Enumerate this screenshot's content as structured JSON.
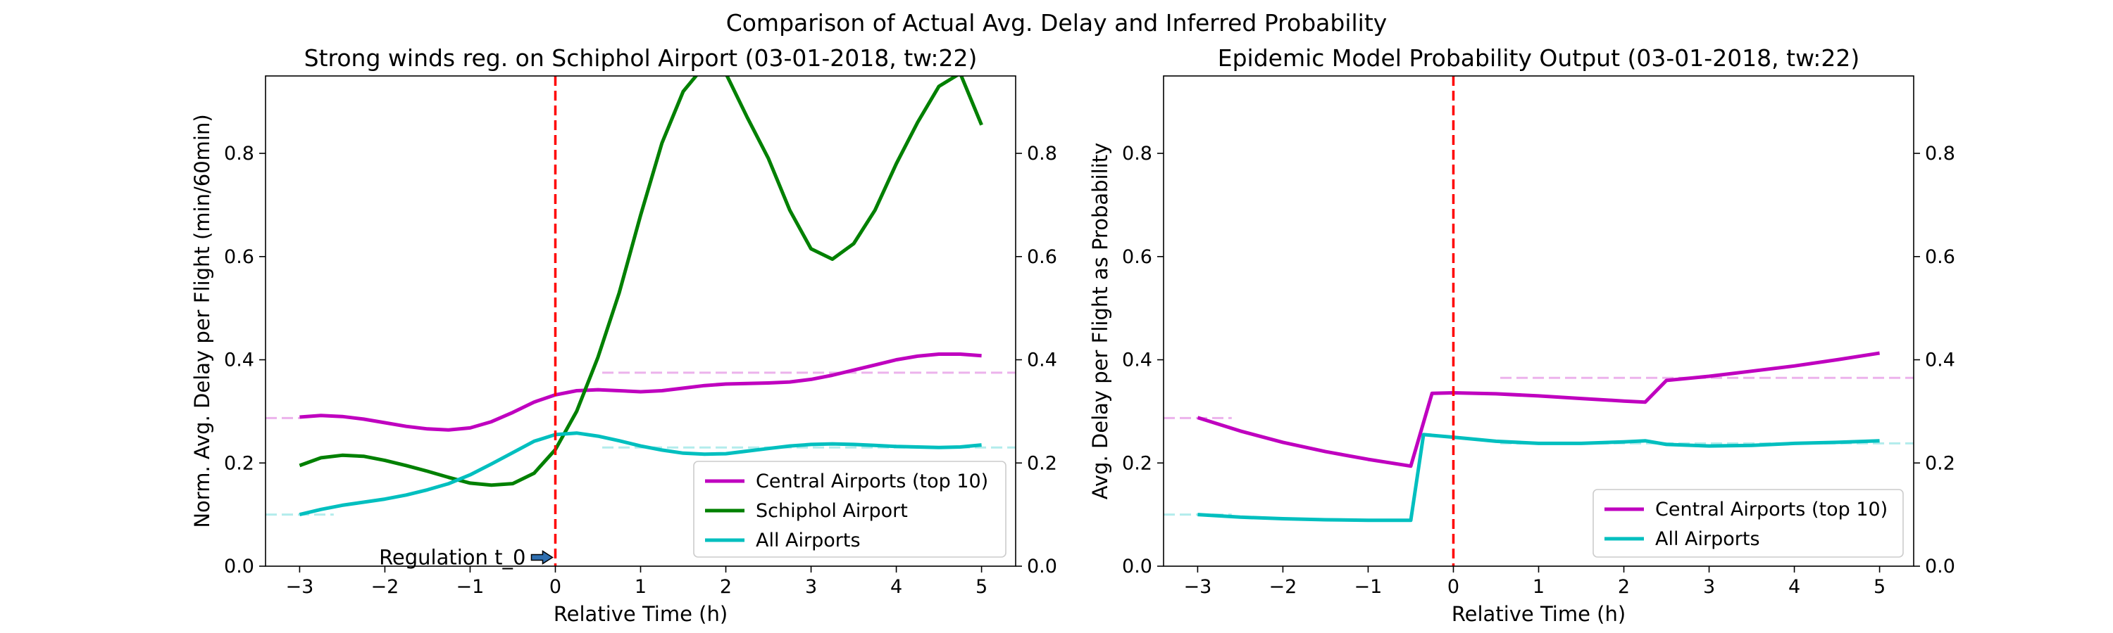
{
  "figure": {
    "suptitle": "Comparison of Actual Avg. Delay and Inferred Probability"
  },
  "colors": {
    "central": "#bf00bf",
    "schiphol": "#008000",
    "all": "#00bfbf",
    "regulation_line": "#ff0000"
  },
  "chart_data": [
    {
      "type": "line",
      "title": "Strong winds reg. on Schiphol Airport (03-01-2018, tw:22)",
      "xlabel": "Relative Time (h)",
      "ylabel": "Norm. Avg. Delay per Flight (min/60min)",
      "xlim": [
        -3.4,
        5.4
      ],
      "ylim": [
        0,
        0.95
      ],
      "xticks": [
        "−3",
        "−2",
        "−1",
        "0",
        "1",
        "2",
        "3",
        "4",
        "5"
      ],
      "xtick_values": [
        -3,
        -2,
        -1,
        0,
        1,
        2,
        3,
        4,
        5
      ],
      "yticks": [
        "0.0",
        "0.2",
        "0.4",
        "0.6",
        "0.8"
      ],
      "ytick_values": [
        0.0,
        0.2,
        0.4,
        0.6,
        0.8
      ],
      "right_yticks": [
        "0.0",
        "0.2",
        "0.4",
        "0.6",
        "0.8"
      ],
      "regulation_x": 0,
      "annotation": "Regulation t_0",
      "legend_placement": "lower-right",
      "series": [
        {
          "name": "Central Airports (top 10)",
          "color_key": "central",
          "x": [
            -3,
            -2.75,
            -2.5,
            -2.25,
            -2,
            -1.75,
            -1.5,
            -1.25,
            -1,
            -0.75,
            -0.5,
            -0.25,
            0,
            0.25,
            0.5,
            0.75,
            1,
            1.25,
            1.5,
            1.75,
            2,
            2.25,
            2.5,
            2.75,
            3,
            3.25,
            3.5,
            3.75,
            4,
            4.25,
            4.5,
            4.75,
            5
          ],
          "y": [
            0.289,
            0.292,
            0.29,
            0.285,
            0.278,
            0.271,
            0.266,
            0.264,
            0.268,
            0.28,
            0.298,
            0.318,
            0.332,
            0.34,
            0.342,
            0.34,
            0.338,
            0.34,
            0.345,
            0.35,
            0.353,
            0.354,
            0.355,
            0.357,
            0.362,
            0.37,
            0.38,
            0.39,
            0.4,
            0.407,
            0.411,
            0.411,
            0.408
          ]
        },
        {
          "name": "Schiphol Airport",
          "color_key": "schiphol",
          "x": [
            -3,
            -2.75,
            -2.5,
            -2.25,
            -2,
            -1.75,
            -1.5,
            -1.25,
            -1,
            -0.75,
            -0.5,
            -0.25,
            0,
            0.25,
            0.5,
            0.75,
            1,
            1.25,
            1.5,
            1.75,
            2,
            2.25,
            2.5,
            2.75,
            3,
            3.25,
            3.5,
            3.75,
            4,
            4.25,
            4.5,
            4.75,
            5
          ],
          "y": [
            0.195,
            0.21,
            0.215,
            0.213,
            0.205,
            0.195,
            0.184,
            0.172,
            0.161,
            0.157,
            0.16,
            0.18,
            0.226,
            0.3,
            0.405,
            0.53,
            0.68,
            0.82,
            0.92,
            0.97,
            0.955,
            0.87,
            0.79,
            0.69,
            0.615,
            0.595,
            0.625,
            0.69,
            0.78,
            0.86,
            0.93,
            0.955,
            0.855
          ]
        },
        {
          "name": "All Airports",
          "color_key": "all",
          "x": [
            -3,
            -2.75,
            -2.5,
            -2.25,
            -2,
            -1.75,
            -1.5,
            -1.25,
            -1,
            -0.75,
            -0.5,
            -0.25,
            0,
            0.25,
            0.5,
            0.75,
            1,
            1.25,
            1.5,
            1.75,
            2,
            2.25,
            2.5,
            2.75,
            3,
            3.25,
            3.5,
            3.75,
            4,
            4.25,
            4.5,
            4.75,
            5
          ],
          "y": [
            0.1,
            0.11,
            0.118,
            0.124,
            0.13,
            0.138,
            0.148,
            0.16,
            0.177,
            0.198,
            0.22,
            0.242,
            0.255,
            0.258,
            0.252,
            0.243,
            0.233,
            0.225,
            0.219,
            0.217,
            0.218,
            0.223,
            0.228,
            0.233,
            0.236,
            0.237,
            0.236,
            0.234,
            0.232,
            0.231,
            0.23,
            0.231,
            0.235
          ]
        }
      ],
      "reference_lines": [
        {
          "color_key": "central",
          "y": 0.287,
          "x_start": -3.4,
          "x_end": -3.0
        },
        {
          "color_key": "central",
          "y": 0.375,
          "x_start": 0.55,
          "x_end": 5.4
        },
        {
          "color_key": "all",
          "y": 0.1,
          "x_start": -3.4,
          "x_end": -2.6
        },
        {
          "color_key": "all",
          "y": 0.23,
          "x_start": 0.55,
          "x_end": 5.4
        }
      ]
    },
    {
      "type": "line",
      "title": "Epidemic Model Probability Output (03-01-2018, tw:22)",
      "xlabel": "Relative Time (h)",
      "ylabel": "Avg. Delay per Flight as Probability",
      "xlim": [
        -3.4,
        5.4
      ],
      "ylim": [
        0,
        0.95
      ],
      "xticks": [
        "−3",
        "−2",
        "−1",
        "0",
        "1",
        "2",
        "3",
        "4",
        "5"
      ],
      "xtick_values": [
        -3,
        -2,
        -1,
        0,
        1,
        2,
        3,
        4,
        5
      ],
      "yticks": [
        "0.0",
        "0.2",
        "0.4",
        "0.6",
        "0.8"
      ],
      "ytick_values": [
        0.0,
        0.2,
        0.4,
        0.6,
        0.8
      ],
      "right_yticks": [
        "0.0",
        "0.2",
        "0.4",
        "0.6",
        "0.8"
      ],
      "regulation_x": 0,
      "legend_placement": "lower-right",
      "series": [
        {
          "name": "Central Airports (top 10)",
          "color_key": "central",
          "x": [
            -3,
            -2.5,
            -2,
            -1.5,
            -1,
            -0.5,
            -0.25,
            0,
            0.5,
            1,
            1.5,
            2,
            2.25,
            2.5,
            3,
            3.5,
            4,
            4.5,
            5
          ],
          "y": [
            0.288,
            0.262,
            0.24,
            0.222,
            0.207,
            0.194,
            0.335,
            0.336,
            0.334,
            0.33,
            0.325,
            0.32,
            0.318,
            0.36,
            0.368,
            0.378,
            0.388,
            0.4,
            0.413
          ]
        },
        {
          "name": "All Airports",
          "color_key": "all",
          "x": [
            -3,
            -2.5,
            -2,
            -1.5,
            -1,
            -0.5,
            -0.35,
            0,
            0.5,
            1,
            1.5,
            2,
            2.25,
            2.5,
            3,
            3.5,
            4,
            4.5,
            5
          ],
          "y": [
            0.1,
            0.095,
            0.092,
            0.09,
            0.089,
            0.089,
            0.255,
            0.25,
            0.242,
            0.238,
            0.238,
            0.241,
            0.243,
            0.236,
            0.233,
            0.234,
            0.238,
            0.24,
            0.243
          ]
        }
      ],
      "reference_lines": [
        {
          "color_key": "central",
          "y": 0.287,
          "x_start": -3.4,
          "x_end": -2.6
        },
        {
          "color_key": "central",
          "y": 0.365,
          "x_start": 0.55,
          "x_end": 5.4
        },
        {
          "color_key": "all",
          "y": 0.1,
          "x_start": -3.4,
          "x_end": -2.6
        },
        {
          "color_key": "all",
          "y": 0.238,
          "x_start": 0.55,
          "x_end": 5.4
        }
      ]
    }
  ]
}
